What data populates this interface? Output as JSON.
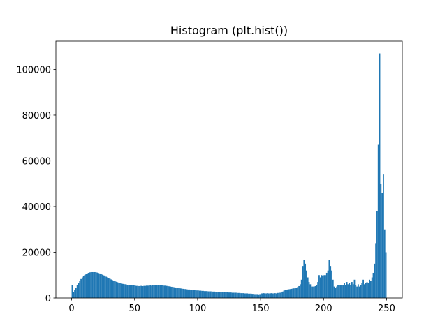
{
  "chart_data": {
    "type": "histogram",
    "title": "Histogram (plt.hist())",
    "color": "#1f77b4",
    "bins": [
      0,
      1,
      2,
      3,
      4,
      5,
      6,
      7,
      8,
      9,
      10,
      11,
      12,
      13,
      14,
      15,
      16,
      17,
      18,
      19,
      20,
      21,
      22,
      23,
      24,
      25,
      26,
      27,
      28,
      29,
      30,
      31,
      32,
      33,
      34,
      35,
      36,
      37,
      38,
      39,
      40,
      41,
      42,
      43,
      44,
      45,
      46,
      47,
      48,
      49,
      50,
      51,
      52,
      53,
      54,
      55,
      56,
      57,
      58,
      59,
      60,
      61,
      62,
      63,
      64,
      65,
      66,
      67,
      68,
      69,
      70,
      71,
      72,
      73,
      74,
      75,
      76,
      77,
      78,
      79,
      80,
      81,
      82,
      83,
      84,
      85,
      86,
      87,
      88,
      89,
      90,
      91,
      92,
      93,
      94,
      95,
      96,
      97,
      98,
      99,
      100,
      101,
      102,
      103,
      104,
      105,
      106,
      107,
      108,
      109,
      110,
      111,
      112,
      113,
      114,
      115,
      116,
      117,
      118,
      119,
      120,
      121,
      122,
      123,
      124,
      125,
      126,
      127,
      128,
      129,
      130,
      131,
      132,
      133,
      134,
      135,
      136,
      137,
      138,
      139,
      140,
      141,
      142,
      143,
      144,
      145,
      146,
      147,
      148,
      149,
      150,
      151,
      152,
      153,
      154,
      155,
      156,
      157,
      158,
      159,
      160,
      161,
      162,
      163,
      164,
      165,
      166,
      167,
      168,
      169,
      170,
      171,
      172,
      173,
      174,
      175,
      176,
      177,
      178,
      179,
      180,
      181,
      182,
      183,
      184,
      185,
      186,
      187,
      188,
      189,
      190,
      191,
      192,
      193,
      194,
      195,
      196,
      197,
      198,
      199,
      200,
      201,
      202,
      203,
      204,
      205,
      206,
      207,
      208,
      209,
      210,
      211,
      212,
      213,
      214,
      215,
      216,
      217,
      218,
      219,
      220,
      221,
      222,
      223,
      224,
      225,
      226,
      227,
      228,
      229,
      230,
      231,
      232,
      233,
      234,
      235,
      236,
      237,
      238,
      239,
      240,
      241,
      242,
      243,
      244,
      245,
      246,
      247,
      248,
      249,
      250
    ],
    "counts": [
      5500,
      2500,
      3500,
      4500,
      5500,
      6500,
      7500,
      8300,
      9000,
      9600,
      10100,
      10500,
      10800,
      11000,
      11200,
      11300,
      11300,
      11300,
      11300,
      11200,
      11100,
      10900,
      10700,
      10500,
      10200,
      9900,
      9600,
      9300,
      9000,
      8700,
      8400,
      8100,
      7800,
      7500,
      7300,
      7100,
      6900,
      6700,
      6500,
      6300,
      6200,
      6100,
      6000,
      5900,
      5800,
      5700,
      5600,
      5600,
      5500,
      5500,
      5400,
      5300,
      5300,
      5200,
      5300,
      5300,
      5200,
      5300,
      5300,
      5400,
      5400,
      5400,
      5500,
      5400,
      5500,
      5500,
      5500,
      5500,
      5600,
      5500,
      5500,
      5500,
      5500,
      5400,
      5400,
      5300,
      5200,
      5100,
      5000,
      4900,
      4800,
      4700,
      4600,
      4500,
      4400,
      4300,
      4200,
      4100,
      4000,
      3900,
      3900,
      3800,
      3700,
      3700,
      3600,
      3500,
      3500,
      3400,
      3400,
      3300,
      3300,
      3200,
      3200,
      3100,
      3100,
      3000,
      3000,
      3000,
      2900,
      2900,
      2900,
      2800,
      2800,
      2800,
      2700,
      2700,
      2700,
      2600,
      2600,
      2600,
      2600,
      2500,
      2500,
      2500,
      2400,
      2400,
      2400,
      2300,
      2300,
      2300,
      2300,
      2200,
      2200,
      2200,
      2100,
      2100,
      2100,
      2000,
      2000,
      2000,
      1900,
      1900,
      1900,
      1800,
      1800,
      1700,
      1700,
      1700,
      1600,
      1700,
      2000,
      2000,
      2100,
      2000,
      2000,
      2100,
      2000,
      2000,
      2100,
      2000,
      2000,
      2100,
      2000,
      2200,
      2200,
      2300,
      2500,
      2800,
      3200,
      3500,
      3600,
      3700,
      3800,
      3900,
      4000,
      4100,
      4200,
      4300,
      4500,
      4800,
      5200,
      6000,
      8000,
      14000,
      16500,
      15000,
      12000,
      9000,
      7000,
      6000,
      5000,
      5000,
      5000,
      5200,
      5500,
      7000,
      10000,
      9000,
      10000,
      9500,
      10000,
      10000,
      11000,
      12000,
      16500,
      14000,
      12000,
      8000,
      5000,
      4500,
      5000,
      5500,
      5500,
      5500,
      5500,
      5500,
      6500,
      5500,
      7000,
      6000,
      6500,
      5500,
      7000,
      6000,
      8000,
      5500,
      5000,
      6000,
      5000,
      5500,
      6500,
      8000,
      6000,
      6500,
      7000,
      6500,
      8000,
      7500,
      9000,
      11000,
      15000,
      24000,
      38000,
      67000,
      107000,
      50000,
      46000,
      54000,
      30000,
      20000
    ],
    "xlim": [
      -12.5,
      262.5
    ],
    "xticks": [
      0,
      50,
      100,
      150,
      200,
      250
    ],
    "ylim": [
      0,
      112350
    ],
    "yticks": [
      0,
      20000,
      40000,
      60000,
      80000,
      100000
    ]
  }
}
